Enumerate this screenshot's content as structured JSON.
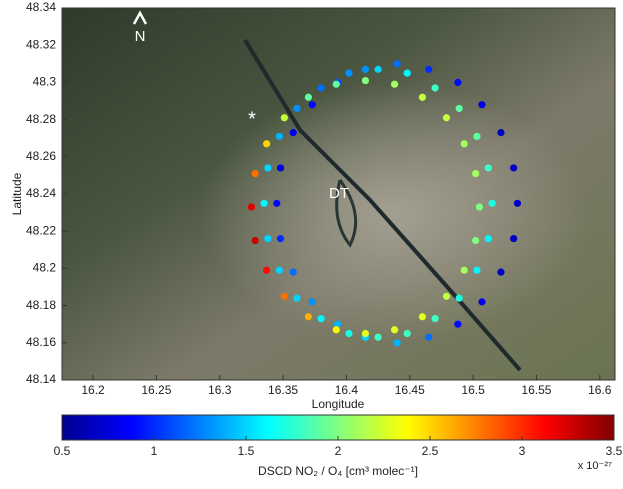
{
  "chart_data": {
    "type": "scatter",
    "xlabel": "Longitude",
    "ylabel": "Latitude",
    "xlim": [
      16.1755,
      16.612
    ],
    "ylim": [
      48.14,
      48.34
    ],
    "xticks": [
      16.2,
      16.25,
      16.3,
      16.35,
      16.4,
      16.45,
      16.5,
      16.55,
      16.6
    ],
    "yticks": [
      48.14,
      48.16,
      48.18,
      48.2,
      48.22,
      48.24,
      48.26,
      48.28,
      48.3,
      48.32,
      48.34
    ],
    "colormap": "jet",
    "clim": [
      0.5,
      3.5
    ],
    "cticks": [
      0.5,
      1,
      1.5,
      2,
      2.5,
      3,
      3.5
    ],
    "colorbar_label": "DSCD NO₂ / O₄ [cm³ molec⁻¹]",
    "colorbar_exponent": "x 10⁻²⁷",
    "annotations": [
      "N",
      "DT",
      "*"
    ],
    "series": [
      {
        "x": [
          16.44,
          16.465,
          16.488,
          16.507,
          16.522,
          16.532,
          16.535,
          16.532,
          16.522,
          16.507,
          16.488,
          16.465,
          16.44,
          16.415,
          16.393,
          16.373,
          16.358,
          16.348,
          16.345,
          16.348,
          16.358,
          16.373,
          16.393,
          16.415
        ],
        "y": [
          48.31,
          48.307,
          48.3,
          48.288,
          48.273,
          48.254,
          48.235,
          48.216,
          48.198,
          48.182,
          48.17,
          48.163,
          48.16,
          48.163,
          48.17,
          48.182,
          48.198,
          48.216,
          48.235,
          48.254,
          48.273,
          48.288,
          48.3,
          48.307
        ],
        "c": [
          1.2,
          1.0,
          0.9,
          0.8,
          0.7,
          0.7,
          0.7,
          0.7,
          0.7,
          0.8,
          0.9,
          1.2,
          1.4,
          1.5,
          1.4,
          1.3,
          1.2,
          1.0,
          0.9,
          0.8,
          0.8,
          0.9,
          1.1,
          1.3
        ]
      },
      {
        "x": [
          16.425,
          16.448,
          16.47,
          16.489,
          16.503,
          16.512,
          16.515,
          16.512,
          16.503,
          16.489,
          16.47,
          16.448,
          16.425,
          16.402,
          16.38,
          16.361,
          16.347,
          16.338,
          16.335,
          16.338,
          16.347,
          16.361,
          16.38,
          16.402
        ],
        "y": [
          48.307,
          48.305,
          48.297,
          48.286,
          48.271,
          48.254,
          48.235,
          48.216,
          48.199,
          48.184,
          48.173,
          48.165,
          48.163,
          48.165,
          48.173,
          48.184,
          48.199,
          48.216,
          48.235,
          48.254,
          48.271,
          48.286,
          48.297,
          48.305
        ],
        "c": [
          1.5,
          1.6,
          1.8,
          1.9,
          1.9,
          1.8,
          1.7,
          1.6,
          1.6,
          1.7,
          1.8,
          1.8,
          1.8,
          1.7,
          1.6,
          1.5,
          1.5,
          1.5,
          1.6,
          1.5,
          1.4,
          1.3,
          1.2,
          1.3
        ]
      },
      {
        "x": [
          16.415,
          16.438,
          16.46,
          16.479,
          16.493,
          16.502,
          16.505,
          16.502,
          16.493,
          16.479,
          16.46,
          16.438,
          16.415,
          16.392,
          16.37,
          16.351,
          16.337,
          16.328,
          16.325,
          16.328,
          16.337,
          16.351,
          16.37,
          16.392
        ],
        "y": [
          48.301,
          48.299,
          48.292,
          48.281,
          48.267,
          48.251,
          48.233,
          48.215,
          48.199,
          48.185,
          48.174,
          48.167,
          48.165,
          48.167,
          48.174,
          48.185,
          48.199,
          48.215,
          48.233,
          48.251,
          48.267,
          48.281,
          48.292,
          48.299
        ],
        "c": [
          2.0,
          2.1,
          2.2,
          2.2,
          2.1,
          2.1,
          2.0,
          2.0,
          2.1,
          2.2,
          2.3,
          2.3,
          2.3,
          2.4,
          2.6,
          2.8,
          3.1,
          3.3,
          3.2,
          2.8,
          2.5,
          2.2,
          1.9,
          1.9
        ]
      }
    ]
  }
}
